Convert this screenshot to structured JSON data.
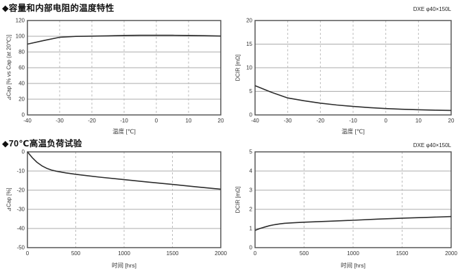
{
  "page": {
    "section1_title": "◆容量和内部电阻的温度特性",
    "section2_title": "◆70℃高温负荷试验"
  },
  "colors": {
    "curve": "#2b2b2b",
    "frame": "#555555",
    "grid": "#a8a8a8",
    "grid_dashed": "#bbbbbb",
    "text": "#333333"
  },
  "chart_data": [
    {
      "id": "delta-cap-vs-temperature",
      "type": "line",
      "xlabel": "温度 [℃]",
      "ylabel": "⊿Cap [% vs Cap (at 20℃)]",
      "xlim": [
        -40,
        20
      ],
      "ylim": [
        0,
        120
      ],
      "xticks": [
        -40,
        -30,
        -20,
        -10,
        0,
        10,
        20
      ],
      "yticks": [
        0,
        20,
        40,
        60,
        80,
        100,
        120
      ],
      "x": [
        -40,
        -35,
        -30,
        -25,
        -20,
        -15,
        -10,
        -5,
        0,
        5,
        10,
        15,
        20
      ],
      "y": [
        90,
        94.5,
        98.7,
        99.8,
        100.2,
        100.5,
        101,
        101.2,
        101.2,
        101.2,
        101,
        100.7,
        100.3
      ]
    },
    {
      "id": "dcir-vs-temperature",
      "type": "line",
      "corner_label": "DXE φ40×150L",
      "xlabel": "温度 [℃]",
      "ylabel": "DCIR [mΩ]",
      "xlim": [
        -40,
        20
      ],
      "ylim": [
        0,
        20
      ],
      "xticks": [
        -40,
        -30,
        -20,
        -10,
        0,
        10,
        20
      ],
      "yticks": [
        0,
        5,
        10,
        15,
        20
      ],
      "x": [
        -40,
        -35,
        -30,
        -25,
        -20,
        -15,
        -10,
        -5,
        0,
        5,
        10,
        15,
        20
      ],
      "y": [
        6.2,
        4.8,
        3.6,
        3.0,
        2.5,
        2.1,
        1.8,
        1.55,
        1.35,
        1.2,
        1.1,
        1.0,
        0.95
      ]
    },
    {
      "id": "delta-cap-vs-time-70c-load-test",
      "type": "line",
      "xlabel": "时间 [hrs]",
      "ylabel": "⊿Cap [%]",
      "xlim": [
        0,
        2000
      ],
      "ylim": [
        -50,
        0
      ],
      "xticks": [
        0,
        500,
        1000,
        1500,
        2000
      ],
      "yticks": [
        -50,
        -40,
        -30,
        -20,
        -10,
        0
      ],
      "x": [
        0,
        50,
        100,
        150,
        200,
        250,
        300,
        400,
        500,
        750,
        1000,
        1250,
        1500,
        1750,
        2000
      ],
      "y": [
        0,
        -3,
        -5.5,
        -7.3,
        -8.6,
        -9.5,
        -10.1,
        -11,
        -11.7,
        -13.2,
        -14.5,
        -15.8,
        -17,
        -18.3,
        -19.5
      ]
    },
    {
      "id": "dcir-vs-time-70c-load-test",
      "type": "line",
      "corner_label": "DXE φ40×150L",
      "xlabel": "时间 [hrs]",
      "ylabel": "DCIR [mΩ]",
      "xlim": [
        0,
        2000
      ],
      "ylim": [
        0,
        5
      ],
      "xticks": [
        0,
        500,
        1000,
        1500,
        2000
      ],
      "yticks": [
        0,
        1,
        2,
        3,
        4,
        5
      ],
      "x": [
        0,
        50,
        100,
        150,
        200,
        250,
        300,
        400,
        500,
        750,
        1000,
        1250,
        1500,
        1750,
        2000
      ],
      "y": [
        0.9,
        1.0,
        1.08,
        1.15,
        1.2,
        1.24,
        1.27,
        1.3,
        1.33,
        1.38,
        1.43,
        1.49,
        1.54,
        1.58,
        1.62
      ]
    }
  ]
}
